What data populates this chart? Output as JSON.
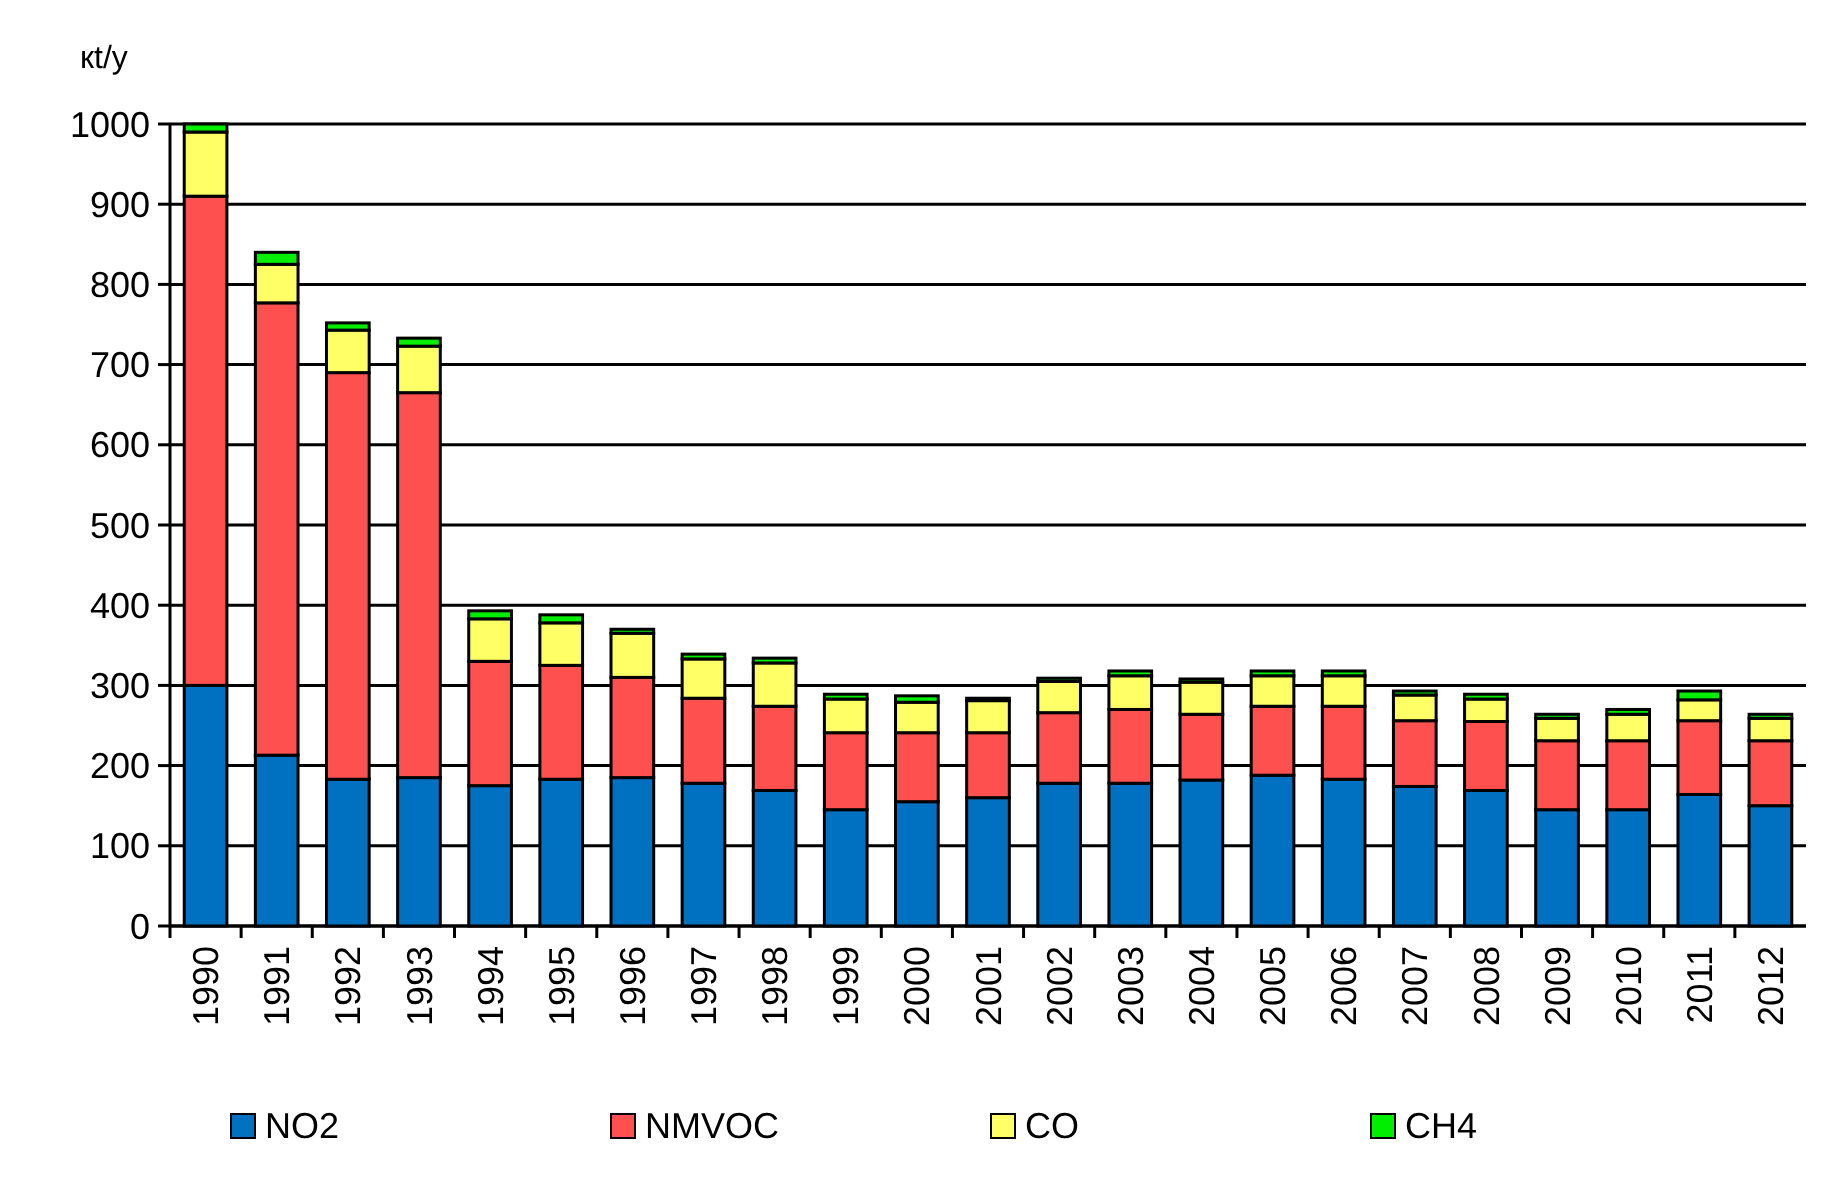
{
  "chart_data": {
    "type": "bar",
    "stacked": true,
    "ylabel": "кt/y",
    "categories": [
      "1990",
      "1991",
      "1992",
      "1993",
      "1994",
      "1995",
      "1996",
      "1997",
      "1998",
      "1999",
      "2000",
      "2001",
      "2002",
      "2003",
      "2004",
      "2005",
      "2006",
      "2007",
      "2008",
      "2009",
      "2010",
      "2011",
      "2012"
    ],
    "series": [
      {
        "name": "NO2",
        "color": "#0070c0",
        "values": [
          300,
          213,
          183,
          185,
          175,
          183,
          185,
          178,
          169,
          145,
          155,
          160,
          178,
          178,
          182,
          188,
          183,
          174,
          169,
          145,
          145,
          164,
          150
        ]
      },
      {
        "name": "NMVOC",
        "color": "#ff5050",
        "values": [
          610,
          564,
          507,
          480,
          155,
          142,
          125,
          106,
          105,
          96,
          86,
          81,
          88,
          92,
          82,
          86,
          91,
          82,
          86,
          86,
          86,
          92,
          81
        ]
      },
      {
        "name": "CO",
        "color": "#ffff66",
        "values": [
          80,
          48,
          53,
          58,
          53,
          53,
          55,
          49,
          54,
          42,
          38,
          40,
          39,
          42,
          40,
          38,
          38,
          32,
          28,
          28,
          33,
          26,
          28
        ]
      },
      {
        "name": "CH4",
        "color": "#00ee00",
        "values": [
          10,
          15,
          9,
          10,
          10,
          10,
          5,
          6,
          6,
          6,
          8,
          3,
          4,
          6,
          4,
          6,
          6,
          5,
          6,
          5,
          6,
          11,
          5
        ]
      }
    ],
    "ylim": [
      0,
      1000
    ],
    "yticks": [
      0,
      100,
      200,
      300,
      400,
      500,
      600,
      700,
      800,
      900,
      1000
    ],
    "grid": "y",
    "legend": "bottom"
  }
}
